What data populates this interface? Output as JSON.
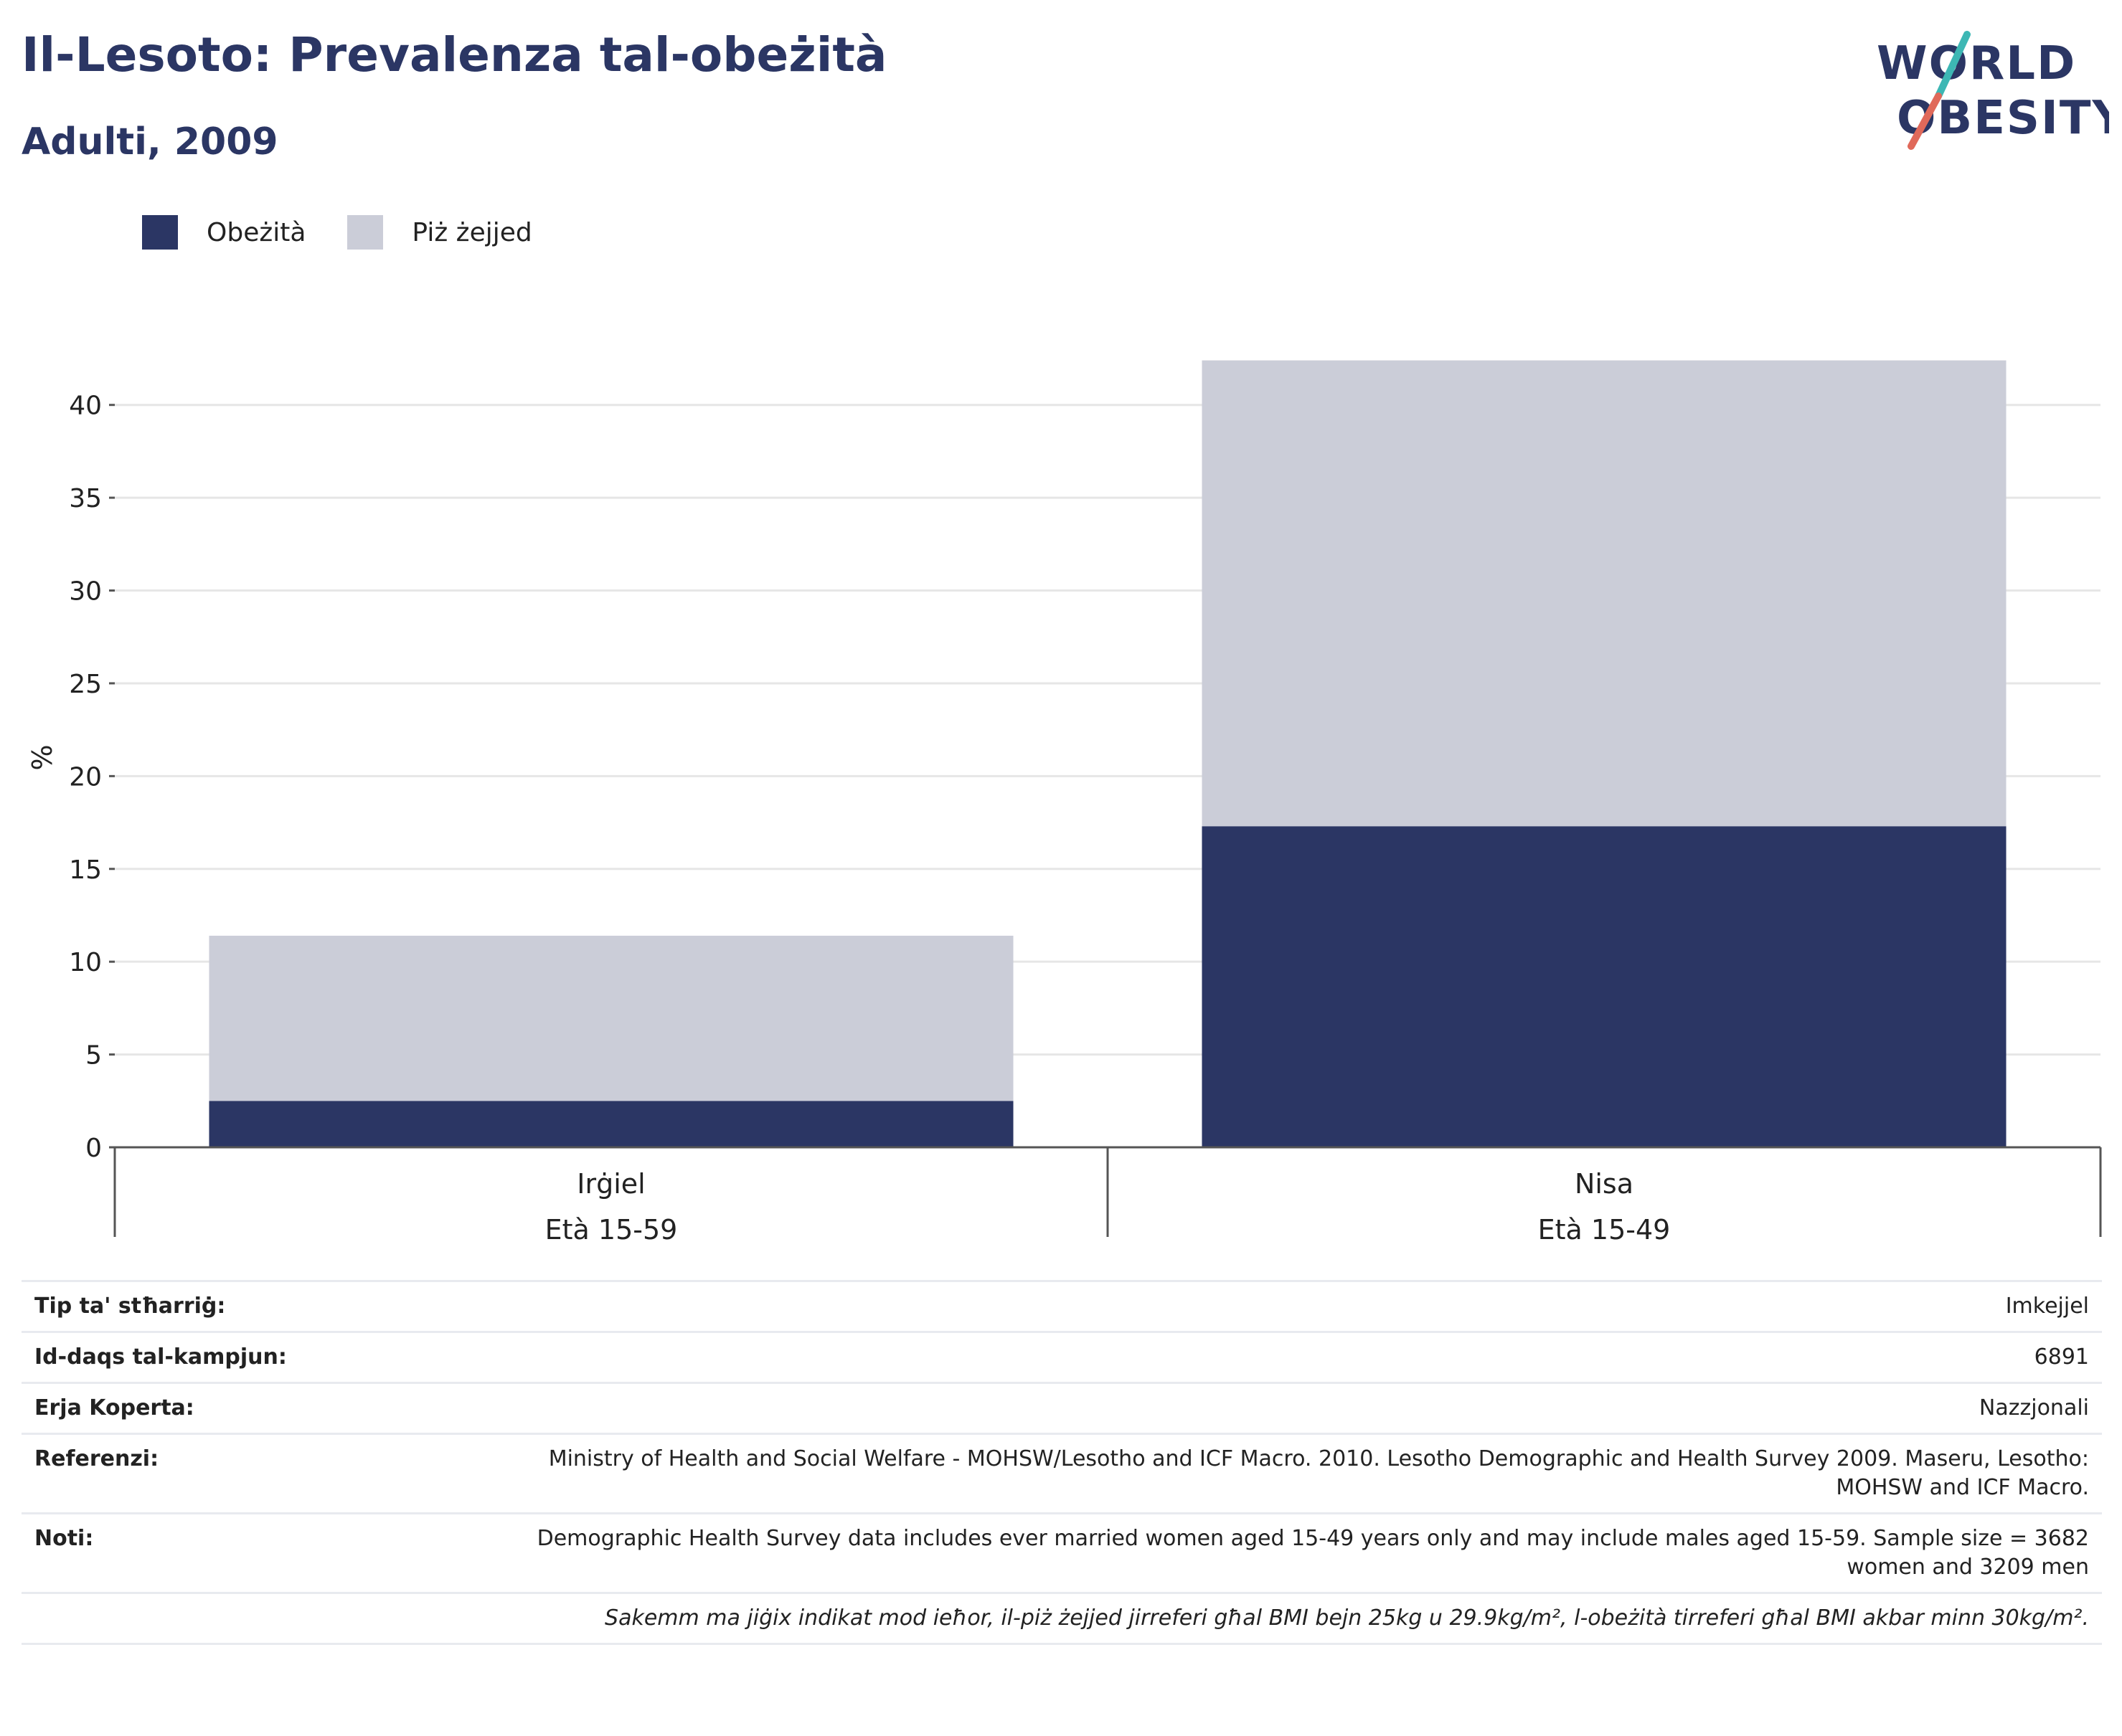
{
  "header": {
    "title": "Il-Lesoto: Prevalenza tal-obeżità",
    "subtitle": "Adulti, 2009",
    "logo_line1": "WORLD",
    "logo_line2": "OBESITY"
  },
  "colors": {
    "obesity": "#2b3664",
    "overweight": "#cbcdd8",
    "accent_teal": "#3db7b4",
    "accent_coral": "#e0695a"
  },
  "chart_data": {
    "type": "bar",
    "stacked": true,
    "categories": [
      "Irġiel",
      "Nisa"
    ],
    "category_sublabels": [
      "Età 15-59",
      "Età 15-49"
    ],
    "series": [
      {
        "name": "Obeżità",
        "values": [
          2.5,
          17.3
        ]
      },
      {
        "name": "Piż żejjed",
        "values": [
          8.9,
          25.1
        ]
      }
    ],
    "ylabel": "%",
    "ylim": [
      0,
      42.5
    ],
    "yticks": [
      0,
      5,
      10,
      15,
      20,
      25,
      30,
      35,
      40
    ],
    "grid": true,
    "legend_position": "top-left"
  },
  "info": {
    "rows": [
      {
        "label": "Tip ta' stħarriġ:",
        "value": "Imkejjel"
      },
      {
        "label": "Id-daqs tal-kampjun:",
        "value": "6891"
      },
      {
        "label": "Erja Koperta:",
        "value": "Nazzjonali"
      },
      {
        "label": "Referenzi:",
        "value": "Ministry of Health and Social Welfare - MOHSW/Lesotho and ICF Macro. 2010. Lesotho Demographic and Health Survey 2009. Maseru, Lesotho: MOHSW and ICF Macro."
      },
      {
        "label": "Noti:",
        "value": "Demographic Health Survey data includes ever married women aged 15-49 years only and may include males aged 15-59. Sample size = 3682 women and 3209 men"
      }
    ],
    "footnote": "Sakemm ma jiġix indikat mod ieħor, il-piż żejjed jirreferi għal BMI bejn 25kg u 29.9kg/m², l-obeżità tirreferi għal BMI akbar minn 30kg/m²."
  }
}
